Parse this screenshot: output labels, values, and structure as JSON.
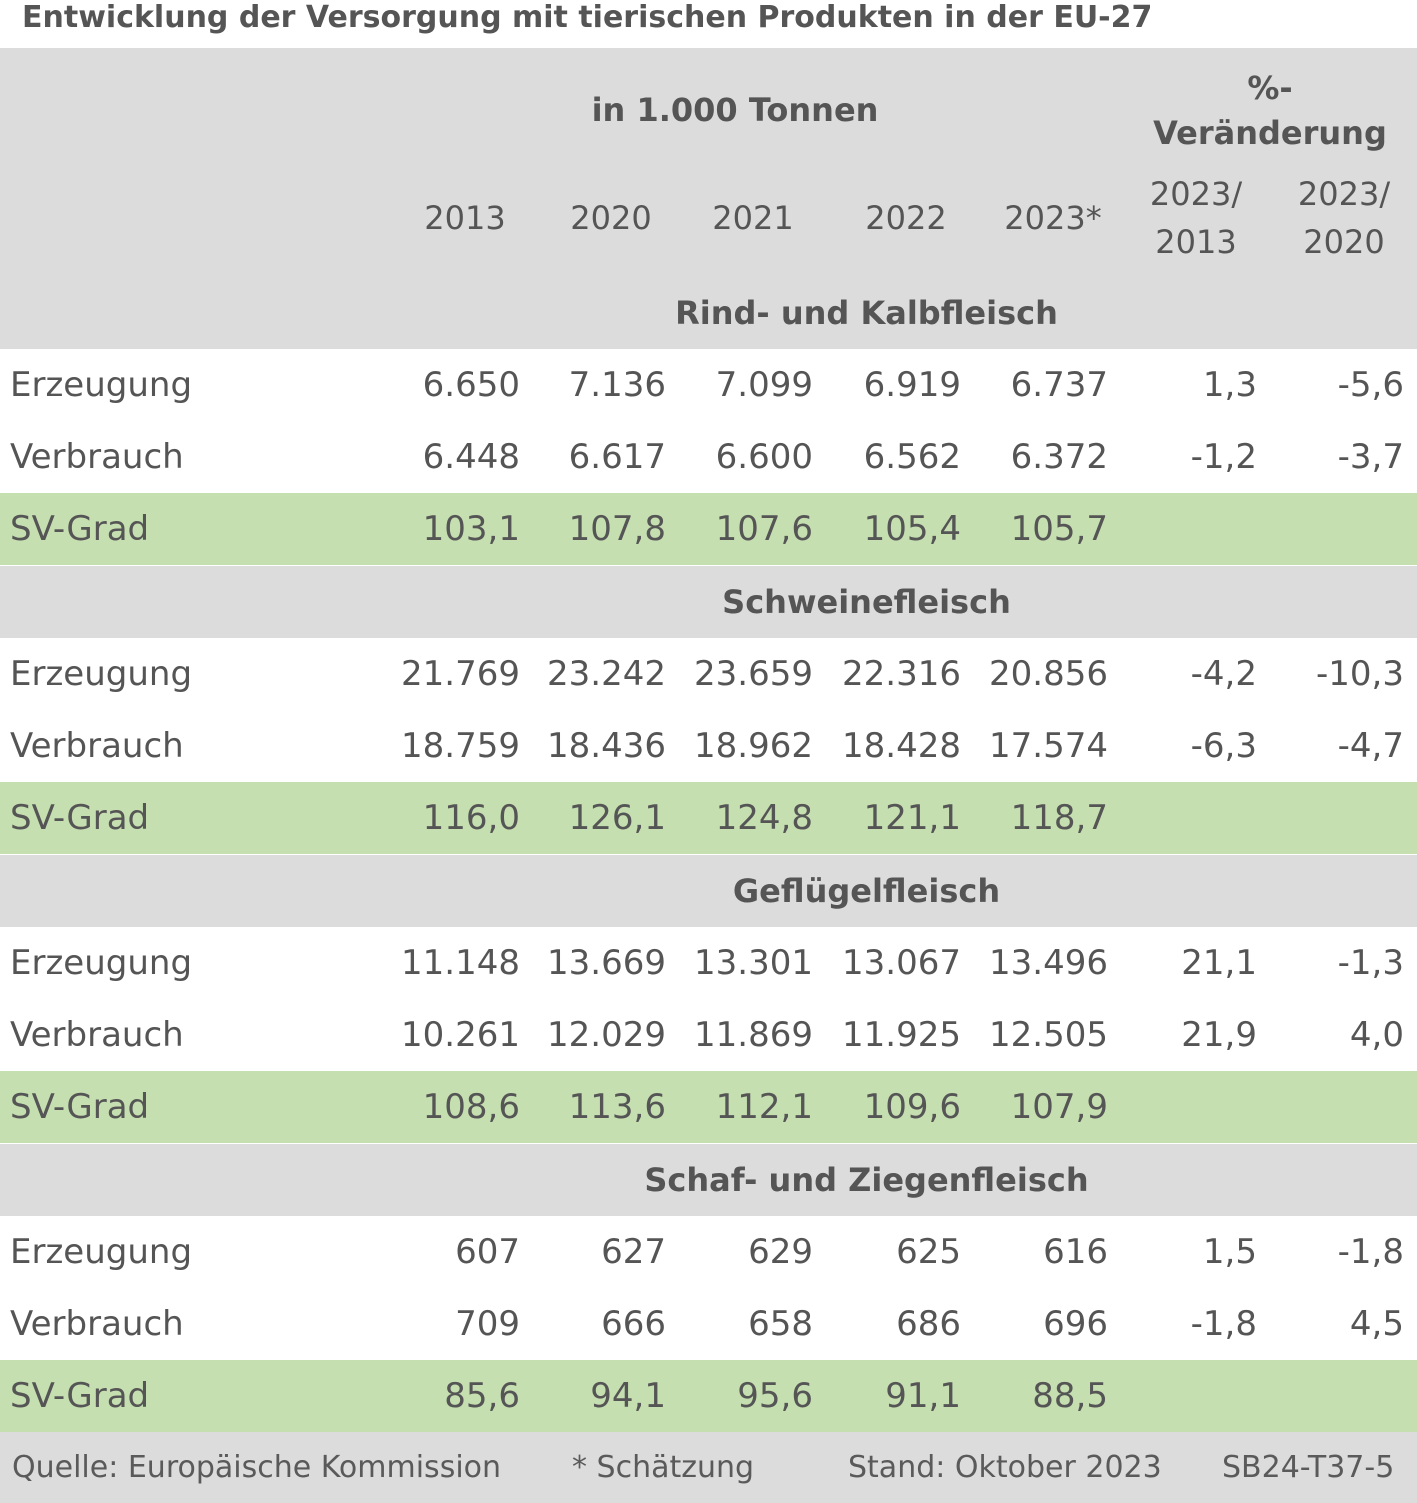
{
  "title": "Entwicklung der Versorgung mit tierischen Produkten in der EU-27",
  "header": {
    "unit_label": "in 1.000 Tonnen",
    "change_label_line1": "%-",
    "change_label_line2": "Veränderung",
    "years": [
      "2013",
      "2020",
      "2021",
      "2022",
      "2023*"
    ],
    "change_cols": [
      {
        "line1": "2023/",
        "line2": "2013"
      },
      {
        "line1": "2023/",
        "line2": "2020"
      }
    ]
  },
  "sections": [
    {
      "name": "Rind- und Kalbfleisch",
      "rows": [
        {
          "label": "Erzeugung",
          "values": [
            "6.650",
            "7.136",
            "7.099",
            "6.919",
            "6.737"
          ],
          "changes": [
            "1,3",
            "-5,6"
          ]
        },
        {
          "label": "Verbrauch",
          "values": [
            "6.448",
            "6.617",
            "6.600",
            "6.562",
            "6.372"
          ],
          "changes": [
            "-1,2",
            "-3,7"
          ]
        },
        {
          "label": "SV-Grad",
          "values": [
            "103,1",
            "107,8",
            "107,6",
            "105,4",
            "105,7"
          ],
          "changes": [
            "",
            ""
          ]
        }
      ]
    },
    {
      "name": "Schweinefleisch",
      "rows": [
        {
          "label": "Erzeugung",
          "values": [
            "21.769",
            "23.242",
            "23.659",
            "22.316",
            "20.856"
          ],
          "changes": [
            "-4,2",
            "-10,3"
          ]
        },
        {
          "label": "Verbrauch",
          "values": [
            "18.759",
            "18.436",
            "18.962",
            "18.428",
            "17.574"
          ],
          "changes": [
            "-6,3",
            "-4,7"
          ]
        },
        {
          "label": "SV-Grad",
          "values": [
            "116,0",
            "126,1",
            "124,8",
            "121,1",
            "118,7"
          ],
          "changes": [
            "",
            ""
          ]
        }
      ]
    },
    {
      "name": "Geflügelfleisch",
      "rows": [
        {
          "label": "Erzeugung",
          "values": [
            "11.148",
            "13.669",
            "13.301",
            "13.067",
            "13.496"
          ],
          "changes": [
            "21,1",
            "-1,3"
          ]
        },
        {
          "label": "Verbrauch",
          "values": [
            "10.261",
            "12.029",
            "11.869",
            "11.925",
            "12.505"
          ],
          "changes": [
            "21,9",
            "4,0"
          ]
        },
        {
          "label": "SV-Grad",
          "values": [
            "108,6",
            "113,6",
            "112,1",
            "109,6",
            "107,9"
          ],
          "changes": [
            "",
            ""
          ]
        }
      ]
    },
    {
      "name": "Schaf- und Ziegenfleisch",
      "rows": [
        {
          "label": "Erzeugung",
          "values": [
            "607",
            "627",
            "629",
            "625",
            "616"
          ],
          "changes": [
            "1,5",
            "-1,8"
          ]
        },
        {
          "label": "Verbrauch",
          "values": [
            "709",
            "666",
            "658",
            "686",
            "696"
          ],
          "changes": [
            "-1,8",
            "4,5"
          ]
        },
        {
          "label": "SV-Grad",
          "values": [
            "85,6",
            "94,1",
            "95,6",
            "91,1",
            "88,5"
          ],
          "changes": [
            "",
            ""
          ]
        }
      ]
    }
  ],
  "footer": {
    "source": "Quelle: Europäische Kommission",
    "note": "* Schätzung",
    "date": "Stand: Oktober 2023",
    "code": "SB24-T37-5"
  },
  "colors": {
    "header_bg": "#dcdcdc",
    "highlight_row_bg": "#c5dfb1",
    "text": "#555555"
  }
}
